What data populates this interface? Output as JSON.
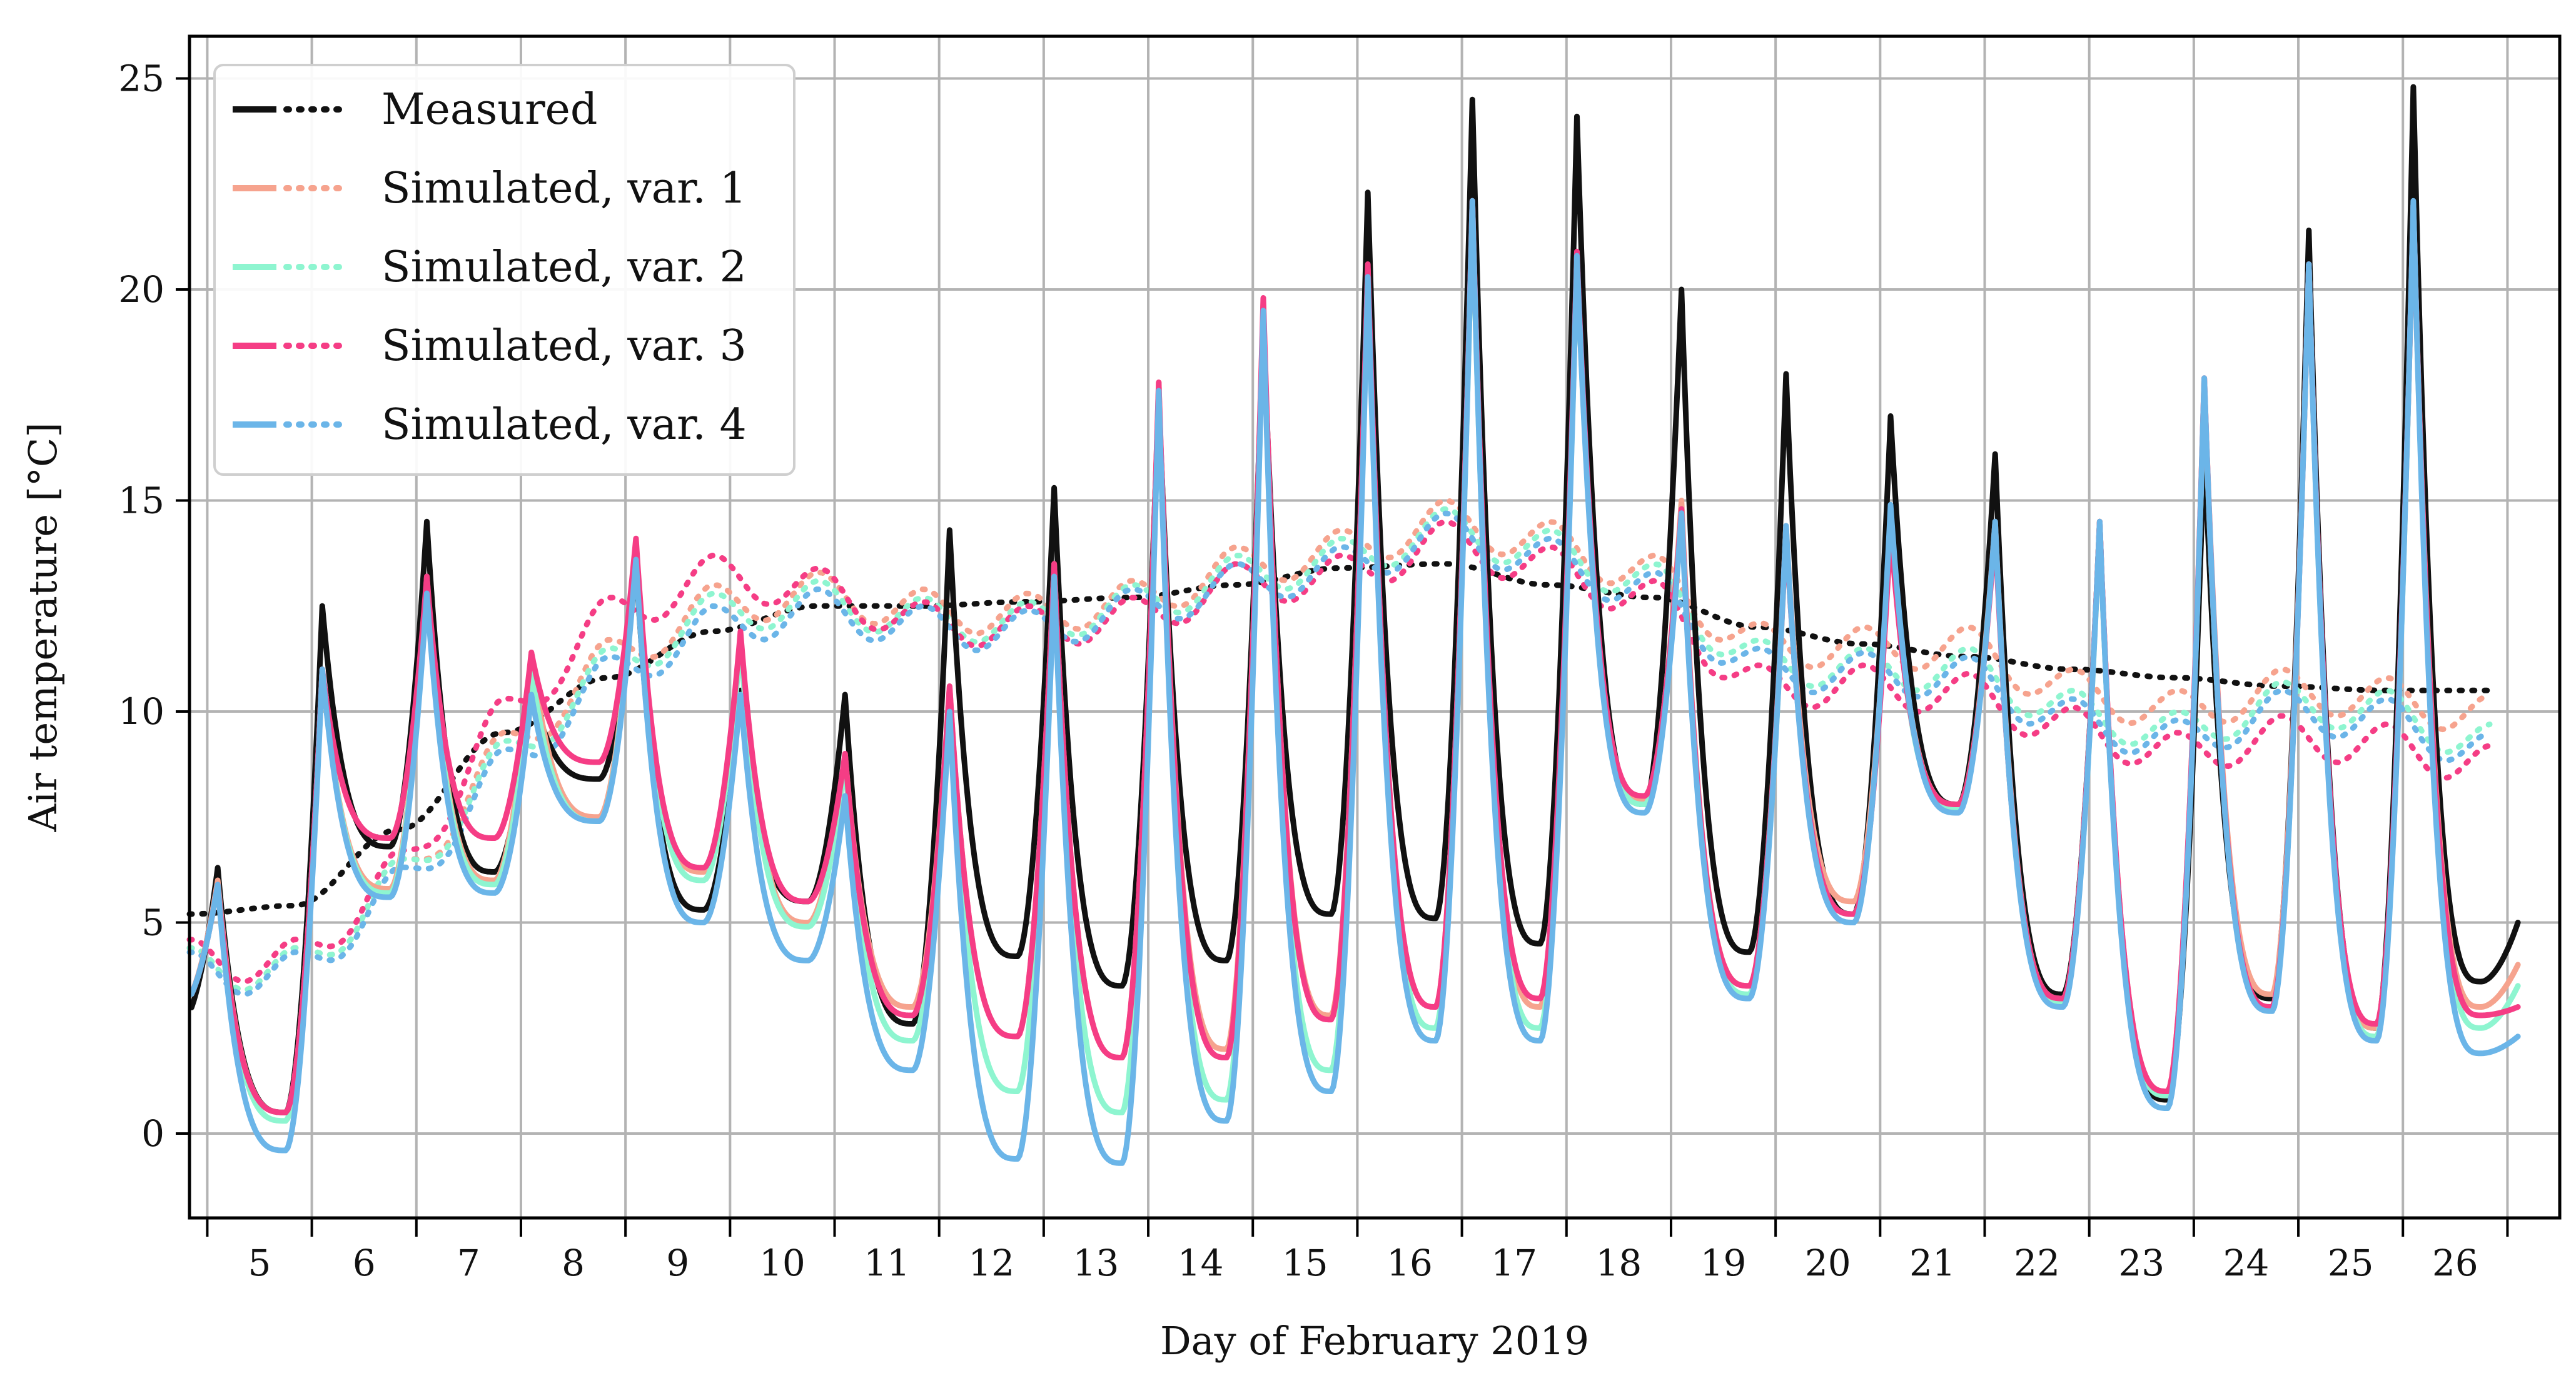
{
  "chart_data": {
    "type": "line",
    "title": "",
    "xlabel": "Day of February 2019",
    "ylabel": "Air temperature [°C]",
    "xlim": [
      4.33,
      27.0
    ],
    "ylim": [
      -2,
      26
    ],
    "xticks": [
      5,
      6,
      7,
      8,
      9,
      10,
      11,
      12,
      13,
      14,
      15,
      16,
      17,
      18,
      19,
      20,
      21,
      22,
      23,
      24,
      25,
      26
    ],
    "yticks": [
      0,
      5,
      10,
      15,
      20,
      25
    ],
    "grid": true,
    "legend_position": "top-left",
    "daily_peak_hour": 0.6,
    "daily_min_hour": 0.25,
    "series": [
      {
        "name": "Measured",
        "color": "#111111",
        "daily_max": [
          6.3,
          12.5,
          14.5,
          10.6,
          13.5,
          10.5,
          10.4,
          14.3,
          15.3,
          17.5,
          19.2,
          22.3,
          24.5,
          24.1,
          20.0,
          18.0,
          17.0,
          16.1,
          14.5,
          16.4,
          21.4,
          24.8,
          5.0
        ],
        "daily_min": [
          2.6,
          0.5,
          6.8,
          6.2,
          8.4,
          5.3,
          5.5,
          2.6,
          4.2,
          3.5,
          4.1,
          5.2,
          5.1,
          4.5,
          7.8,
          4.3,
          5.2,
          7.8,
          3.3,
          0.8,
          3.2,
          2.5,
          3.6
        ],
        "long_term": [
          5.2,
          5.4,
          7.2,
          9.5,
          10.8,
          11.9,
          12.5,
          12.5,
          12.6,
          12.7,
          13.0,
          13.4,
          13.5,
          13.0,
          12.7,
          12.0,
          11.6,
          11.3,
          11.0,
          10.8,
          10.6,
          10.5,
          10.5
        ]
      },
      {
        "name": "Simulated, var. 1",
        "color": "#f6a38e",
        "daily_max": [
          6.0,
          11.0,
          13.2,
          11.4,
          14.0,
          11.8,
          9.0,
          10.6,
          13.5,
          17.8,
          19.7,
          20.5,
          22.1,
          20.8,
          15.0,
          14.4,
          14.5,
          14.5,
          14.5,
          17.9,
          20.6,
          22.0,
          4.0
        ],
        "daily_min": [
          3.0,
          0.5,
          5.8,
          6.0,
          7.5,
          6.2,
          5.0,
          3.0,
          2.3,
          1.8,
          2.0,
          2.8,
          3.0,
          3.0,
          7.9,
          3.5,
          5.5,
          7.8,
          3.2,
          1.0,
          3.3,
          2.5,
          3.0
        ],
        "long_term": [
          3.9,
          3.9,
          6.0,
          9.0,
          11.2,
          12.5,
          12.8,
          12.4,
          12.3,
          12.6,
          13.4,
          13.8,
          14.5,
          14.0,
          13.2,
          11.6,
          11.5,
          11.5,
          10.5,
          10.0,
          10.5,
          10.3,
          9.9
        ]
      },
      {
        "name": "Simulated, var. 2",
        "color": "#8ef5d0",
        "daily_max": [
          5.9,
          11.0,
          13.0,
          11.0,
          13.8,
          11.6,
          8.8,
          10.4,
          13.4,
          17.6,
          19.5,
          20.4,
          22.0,
          20.8,
          14.8,
          14.3,
          14.4,
          14.4,
          14.4,
          17.8,
          20.6,
          22.0,
          3.5
        ],
        "daily_min": [
          3.0,
          0.3,
          5.7,
          5.9,
          7.4,
          6.0,
          4.9,
          2.2,
          1.0,
          0.5,
          0.8,
          1.5,
          2.5,
          2.5,
          7.8,
          3.3,
          5.2,
          7.7,
          3.1,
          0.9,
          3.0,
          2.3,
          2.5
        ],
        "long_term": [
          3.9,
          3.9,
          6.0,
          8.8,
          11.0,
          12.3,
          12.6,
          12.2,
          12.1,
          12.5,
          13.2,
          13.6,
          14.3,
          13.8,
          13.0,
          11.2,
          11.0,
          11.0,
          10.0,
          9.5,
          10.2,
          10.0,
          9.2
        ]
      },
      {
        "name": "Simulated, var. 3",
        "color": "#f53d85",
        "daily_max": [
          5.9,
          11.0,
          13.2,
          11.4,
          14.1,
          11.9,
          9.0,
          10.6,
          13.5,
          17.8,
          19.8,
          20.6,
          22.1,
          20.9,
          14.8,
          14.3,
          14.3,
          14.3,
          14.5,
          17.9,
          20.6,
          22.0,
          3.0
        ],
        "daily_min": [
          3.0,
          0.5,
          7.0,
          7.0,
          8.8,
          6.3,
          5.5,
          2.8,
          2.3,
          1.8,
          1.8,
          2.7,
          3.0,
          3.2,
          8.0,
          3.5,
          5.2,
          7.8,
          3.2,
          1.0,
          3.0,
          2.6,
          2.8
        ],
        "long_term": [
          4.1,
          4.1,
          6.2,
          9.8,
          12.2,
          13.2,
          12.9,
          12.1,
          12.0,
          12.2,
          13.0,
          13.2,
          14.0,
          13.4,
          12.6,
          10.6,
          10.6,
          10.4,
          9.6,
          9.0,
          9.4,
          9.2,
          8.7
        ]
      },
      {
        "name": "Simulated, var. 4",
        "color": "#6bb5e8",
        "daily_max": [
          5.9,
          11.0,
          12.8,
          10.4,
          13.6,
          10.4,
          8.0,
          10.0,
          13.2,
          17.6,
          19.5,
          20.3,
          22.1,
          20.8,
          14.7,
          14.4,
          14.9,
          14.5,
          14.5,
          17.9,
          20.6,
          22.1,
          2.3
        ],
        "daily_min": [
          3.0,
          -0.4,
          5.6,
          5.7,
          7.4,
          5.0,
          4.1,
          1.5,
          -0.6,
          -0.7,
          0.3,
          1.0,
          2.2,
          2.2,
          7.6,
          3.2,
          5.0,
          7.6,
          3.0,
          0.6,
          2.9,
          2.2,
          1.9
        ],
        "long_term": [
          3.8,
          3.8,
          5.8,
          8.6,
          10.8,
          12.0,
          12.4,
          12.0,
          11.9,
          12.4,
          13.0,
          13.4,
          14.2,
          13.6,
          12.8,
          11.0,
          10.9,
          10.8,
          9.8,
          9.3,
          10.0,
          9.8,
          9.0
        ]
      }
    ]
  }
}
